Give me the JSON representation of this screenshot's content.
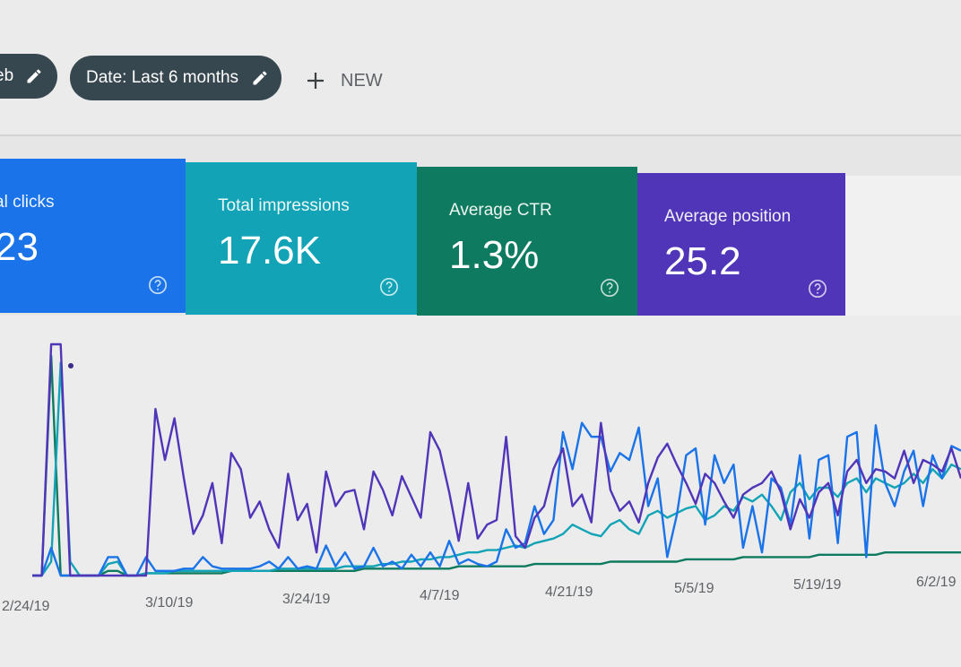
{
  "filters": {
    "search_chip_label": "eb",
    "date_chip_label": "Date: Last 6 months",
    "new_label": "NEW"
  },
  "cards": {
    "clicks": {
      "label": "al clicks",
      "value": "23"
    },
    "impressions": {
      "label": "Total impressions",
      "value": "17.6K"
    },
    "ctr": {
      "label": "Average CTR",
      "value": "1.3%"
    },
    "position": {
      "label": "Average position",
      "value": "25.2"
    }
  },
  "colors": {
    "clicks": "#1a73e8",
    "impressions": "#12a4b6",
    "ctr": "#0e7a5f",
    "position": "#5035b8",
    "chip": "#37474f"
  },
  "icons": {
    "edit": "pencil-icon",
    "add": "plus-icon",
    "help": "help-circle-icon"
  },
  "chart_data": {
    "type": "line",
    "x_tick_labels": [
      "2/24/19",
      "3/10/19",
      "3/24/19",
      "4/7/19",
      "4/21/19",
      "5/5/19",
      "5/19/19",
      "6/2/19"
    ],
    "series": [
      {
        "key": "position",
        "color": "#5035b8",
        "values": [
          0,
          0,
          100,
          100,
          0,
          0,
          0,
          0,
          0,
          0,
          0,
          0,
          0,
          72,
          50,
          68,
          42,
          18,
          26,
          40,
          14,
          53,
          46,
          25,
          32,
          20,
          12,
          44,
          24,
          31,
          10,
          45,
          30,
          36,
          37,
          20,
          45,
          37,
          26,
          43,
          34,
          25,
          62,
          54,
          36,
          15,
          40,
          16,
          22,
          24,
          60,
          17,
          12,
          25,
          30,
          46,
          55,
          30,
          35,
          23,
          66,
          37,
          28,
          32,
          23,
          40,
          51,
          57,
          48,
          40,
          31,
          44,
          40,
          32,
          25,
          35,
          38,
          40,
          45,
          36,
          20,
          33,
          25,
          36,
          40,
          26,
          45,
          50,
          40,
          46,
          45,
          42,
          54,
          40,
          50,
          48,
          45,
          55,
          42
        ]
      },
      {
        "key": "clicks",
        "color": "#1a73e8",
        "values": [
          0,
          0,
          12,
          0,
          0,
          0,
          0,
          0,
          8,
          8,
          0,
          0,
          8,
          2,
          2,
          2,
          3,
          3,
          8,
          4,
          3,
          3,
          3,
          3,
          4,
          6,
          3,
          8,
          3,
          4,
          3,
          13,
          4,
          10,
          3,
          4,
          12,
          4,
          6,
          3,
          9,
          4,
          10,
          4,
          15,
          5,
          7,
          5,
          4,
          6,
          20,
          12,
          14,
          30,
          18,
          24,
          62,
          46,
          66,
          60,
          60,
          45,
          53,
          50,
          64,
          30,
          42,
          8,
          26,
          52,
          55,
          22,
          52,
          40,
          48,
          12,
          30,
          10,
          42,
          38,
          22,
          52,
          16,
          50,
          52,
          14,
          60,
          62,
          8,
          65,
          40,
          30,
          45,
          54,
          30,
          52,
          42,
          56,
          54
        ]
      },
      {
        "key": "impressions",
        "color": "#12a4b6",
        "values": [
          0,
          0,
          6,
          92,
          6,
          0,
          0,
          0,
          5,
          6,
          0,
          0,
          1,
          1,
          1,
          2,
          2,
          2,
          2,
          2,
          2,
          2,
          2,
          2,
          2,
          2,
          3,
          3,
          3,
          3,
          3,
          3,
          3,
          4,
          4,
          4,
          4,
          5,
          5,
          6,
          6,
          7,
          7,
          8,
          8,
          9,
          10,
          10,
          11,
          11,
          12,
          13,
          12,
          14,
          15,
          16,
          18,
          22,
          20,
          18,
          17,
          22,
          24,
          20,
          18,
          26,
          28,
          25,
          27,
          29,
          30,
          24,
          26,
          30,
          28,
          34,
          32,
          35,
          30,
          24,
          36,
          40,
          33,
          38,
          38,
          34,
          40,
          42,
          36,
          42,
          40,
          38,
          40,
          44,
          40,
          46,
          42,
          48,
          46
        ]
      },
      {
        "key": "ctr",
        "color": "#0e7a5f",
        "values": [
          0,
          0,
          95,
          0,
          0,
          0,
          0,
          0,
          2,
          2,
          0,
          0,
          1,
          1,
          1,
          1,
          1,
          1,
          1,
          1,
          1,
          2,
          2,
          2,
          2,
          2,
          2,
          2,
          2,
          2,
          2,
          2,
          2,
          2,
          2,
          3,
          3,
          3,
          3,
          3,
          3,
          3,
          3,
          3,
          3,
          4,
          4,
          4,
          4,
          4,
          4,
          4,
          4,
          5,
          5,
          5,
          5,
          5,
          5,
          5,
          5,
          6,
          6,
          6,
          6,
          6,
          6,
          6,
          6,
          7,
          7,
          7,
          7,
          7,
          7,
          8,
          8,
          8,
          8,
          8,
          8,
          8,
          8,
          9,
          9,
          9,
          9,
          9,
          9,
          9,
          10,
          10,
          10,
          10,
          10,
          10,
          10,
          10,
          10
        ]
      }
    ]
  }
}
